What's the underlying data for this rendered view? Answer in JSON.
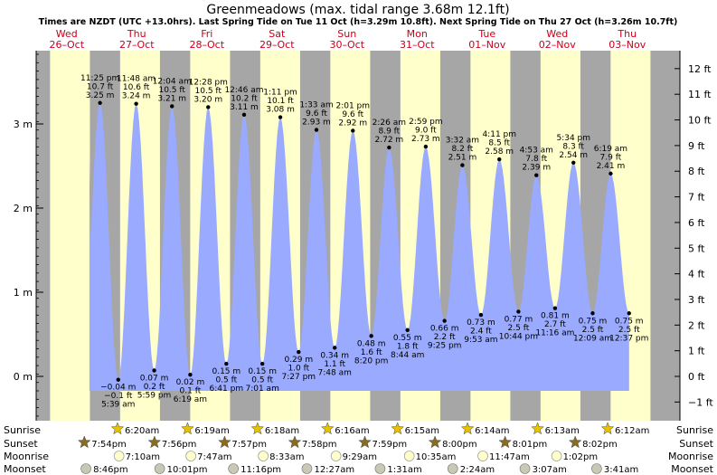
{
  "title": "Greenmeadows (max. tidal range 3.68m 12.1ft)",
  "subtitle": "Times are NZDT (UTC +13.0hrs). Last Spring Tide on Tue 11 Oct (h=3.29m 10.8ft). Next Spring Tide on Thu 27 Oct (h=3.26m 10.7ft)",
  "days": [
    {
      "dow": "Wed",
      "date": "26–Oct"
    },
    {
      "dow": "Thu",
      "date": "27–Oct"
    },
    {
      "dow": "Fri",
      "date": "28–Oct"
    },
    {
      "dow": "Sat",
      "date": "29–Oct"
    },
    {
      "dow": "Sun",
      "date": "30–Oct"
    },
    {
      "dow": "Mon",
      "date": "31–Oct"
    },
    {
      "dow": "Tue",
      "date": "01–Nov"
    },
    {
      "dow": "Wed",
      "date": "02–Nov"
    },
    {
      "dow": "Thu",
      "date": "03–Nov"
    }
  ],
  "left_axis_labels": [
    "0 m",
    "1 m",
    "2 m",
    "3 m"
  ],
  "right_axis_labels": [
    "−1 ft",
    "0 ft",
    "1 ft",
    "2 ft",
    "3 ft",
    "4 ft",
    "5 ft",
    "6 ft",
    "7 ft",
    "8 ft",
    "9 ft",
    "10 ft",
    "11 ft",
    "12 ft"
  ],
  "bottom": {
    "labels": {
      "sunrise": "Sunrise",
      "sunset": "Sunset",
      "moonrise": "Moonrise",
      "moonset": "Moonset"
    },
    "sunrise": [
      "6:20am",
      "6:19am",
      "6:18am",
      "6:16am",
      "6:15am",
      "6:14am",
      "6:13am",
      "6:12am"
    ],
    "sunset": [
      "7:54pm",
      "7:56pm",
      "7:57pm",
      "7:58pm",
      "7:59pm",
      "8:00pm",
      "8:01pm",
      "8:02pm"
    ],
    "moonrise": [
      "7:10am",
      "7:47am",
      "8:33am",
      "9:29am",
      "10:35am",
      "11:47am",
      "1:02pm"
    ],
    "moonset": [
      "8:46pm",
      "10:01pm",
      "11:16pm",
      "12:27am",
      "1:31am",
      "2:24am",
      "3:07am",
      "3:41am"
    ]
  },
  "colors": {
    "day_bg": "#ffffcc",
    "night_bg": "#a6a6a6",
    "tide_fill": "#99aaff",
    "day_label": "#c8001a",
    "sun_star": "#e6c200",
    "sunset_star": "#8a6d1a",
    "moonrise": "#ffffcc",
    "moonset": "#c8c8b4"
  },
  "chart_data": {
    "type": "area",
    "title": "Greenmeadows (max. tidal range 3.68m 12.1ft)",
    "ylabel": "m",
    "ylim": [
      -0.35,
      3.75
    ],
    "y2_unit": "ft",
    "tides": [
      {
        "kind": "high",
        "time": "11:25 pm",
        "ft": "10.7 ft",
        "m": "3.25 m",
        "value": 3.25
      },
      {
        "kind": "low",
        "time": "5:39 am",
        "ft": "−0.1 ft",
        "m": "−0.04 m",
        "value": -0.04
      },
      {
        "kind": "high",
        "time": "11:48 am",
        "ft": "10.6 ft",
        "m": "3.24 m",
        "value": 3.24
      },
      {
        "kind": "low",
        "time": "5:59 pm",
        "ft": "0.2 ft",
        "m": "0.07 m",
        "value": 0.07
      },
      {
        "kind": "high",
        "time": "12:04 am",
        "ft": "10.5 ft",
        "m": "3.21 m",
        "value": 3.21
      },
      {
        "kind": "low",
        "time": "6:19 am",
        "ft": "0.1 ft",
        "m": "0.02 m",
        "value": 0.02
      },
      {
        "kind": "high",
        "time": "12:28 pm",
        "ft": "10.5 ft",
        "m": "3.20 m",
        "value": 3.2
      },
      {
        "kind": "low",
        "time": "6:41 pm",
        "ft": "0.5 ft",
        "m": "0.15 m",
        "value": 0.15
      },
      {
        "kind": "high",
        "time": "12:46 am",
        "ft": "10.2 ft",
        "m": "3.11 m",
        "value": 3.11
      },
      {
        "kind": "low",
        "time": "7:01 am",
        "ft": "0.5 ft",
        "m": "0.15 m",
        "value": 0.15
      },
      {
        "kind": "high",
        "time": "1:11 pm",
        "ft": "10.1 ft",
        "m": "3.08 m",
        "value": 3.08
      },
      {
        "kind": "low",
        "time": "7:27 pm",
        "ft": "1.0 ft",
        "m": "0.29 m",
        "value": 0.29
      },
      {
        "kind": "high",
        "time": "1:33 am",
        "ft": "9.6 ft",
        "m": "2.93 m",
        "value": 2.93
      },
      {
        "kind": "low",
        "time": "7:48 am",
        "ft": "1.1 ft",
        "m": "0.34 m",
        "value": 0.34
      },
      {
        "kind": "high",
        "time": "2:01 pm",
        "ft": "9.6 ft",
        "m": "2.92 m",
        "value": 2.92
      },
      {
        "kind": "low",
        "time": "8:20 pm",
        "ft": "1.6 ft",
        "m": "0.48 m",
        "value": 0.48
      },
      {
        "kind": "high",
        "time": "2:26 am",
        "ft": "8.9 ft",
        "m": "2.72 m",
        "value": 2.72
      },
      {
        "kind": "low",
        "time": "8:44 am",
        "ft": "1.8 ft",
        "m": "0.55 m",
        "value": 0.55
      },
      {
        "kind": "high",
        "time": "2:59 pm",
        "ft": "9.0 ft",
        "m": "2.73 m",
        "value": 2.73
      },
      {
        "kind": "low",
        "time": "9:25 pm",
        "ft": "2.2 ft",
        "m": "0.66 m",
        "value": 0.66
      },
      {
        "kind": "high",
        "time": "3:32 am",
        "ft": "8.2 ft",
        "m": "2.51 m",
        "value": 2.51
      },
      {
        "kind": "low",
        "time": "9:53 am",
        "ft": "2.4 ft",
        "m": "0.73 m",
        "value": 0.73
      },
      {
        "kind": "high",
        "time": "4:11 pm",
        "ft": "8.5 ft",
        "m": "2.58 m",
        "value": 2.58
      },
      {
        "kind": "low",
        "time": "10:44 pm",
        "ft": "2.5 ft",
        "m": "0.77 m",
        "value": 0.77
      },
      {
        "kind": "high",
        "time": "4:53 am",
        "ft": "7.8 ft",
        "m": "2.39 m",
        "value": 2.39
      },
      {
        "kind": "low",
        "time": "11:16 am",
        "ft": "2.7 ft",
        "m": "0.81 m",
        "value": 0.81
      },
      {
        "kind": "high",
        "time": "5:34 pm",
        "ft": "8.3 ft",
        "m": "2.54 m",
        "value": 2.54
      },
      {
        "kind": "low",
        "time": "12:09 am",
        "ft": "2.5 ft",
        "m": "0.75 m",
        "value": 0.75
      },
      {
        "kind": "high",
        "time": "6:19 am",
        "ft": "7.9 ft",
        "m": "2.41 m",
        "value": 2.41
      },
      {
        "kind": "low",
        "time": "12:37 pm",
        "ft": "2.5 ft",
        "m": "0.75 m",
        "value": 0.75
      }
    ]
  }
}
